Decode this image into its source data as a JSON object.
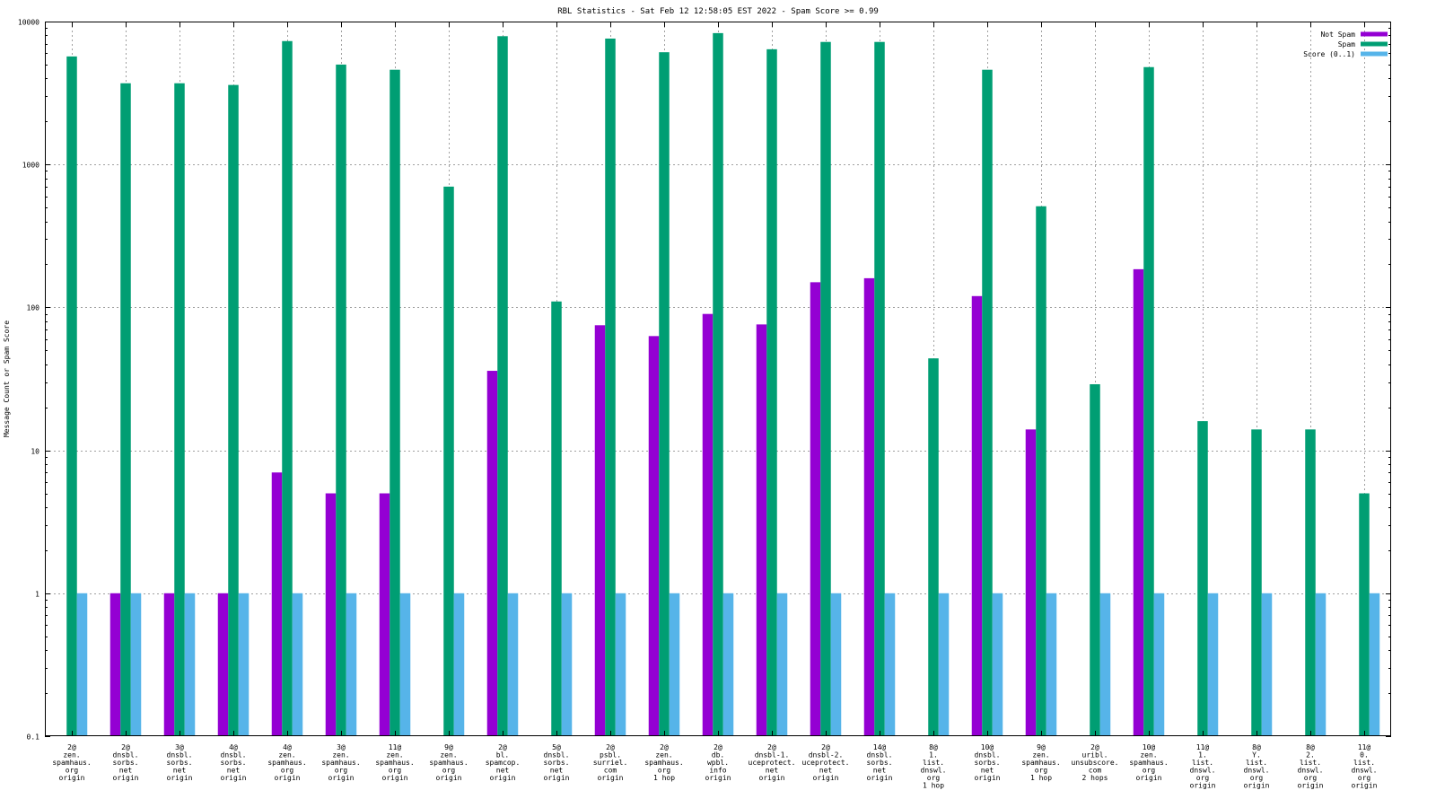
{
  "chart_data": {
    "type": "bar",
    "title": "RBL Statistics - Sat Feb 12 12:58:05 EST 2022 - Spam Score >= 0.99",
    "ylabel": "Message Count or Spam Score",
    "xlabel": "",
    "yscale": "log",
    "ylim": [
      0.1,
      10000
    ],
    "yticks": [
      "0.1",
      "1",
      "10",
      "100",
      "1000",
      "10000"
    ],
    "grid": true,
    "legend_position": "top-right",
    "categories": [
      "2@ zen. spamhaus. org origin",
      "2@ dnsbl. sorbs. net origin",
      "3@ dnsbl. sorbs. net origin",
      "4@ dnsbl. sorbs. net origin",
      "4@ zen. spamhaus. org origin",
      "3@ zen. spamhaus. org origin",
      "11@ zen. spamhaus. org origin",
      "9@ zen. spamhaus. org origin",
      "2@ bl. spamcop. net origin",
      "5@ dnsbl. sorbs. net origin",
      "2@ psbl. surriel. com origin",
      "2@ zen. spamhaus. org 1 hop",
      "2@ db. wpbl. info origin",
      "2@ dnsbl-1. uceprotect. net origin",
      "2@ dnsbl-2. uceprotect. net origin",
      "14@ dnsbl. sorbs. net origin",
      "8@ 1. list. dnswl. org 1 hop",
      "10@ dnsbl. sorbs. net origin",
      "9@ zen. spamhaus. org 1 hop",
      "2@ uribl. unsubscore. com 2 hops",
      "10@ zen. spamhaus. org origin",
      "11@ 1. list. dnswl. org origin",
      "8@ Y. list. dnswl. org origin",
      "8@ 2. list. dnswl. org origin",
      "11@ 0. list. dnswl. org origin"
    ],
    "category_lines": [
      [
        "2@",
        "zen.",
        "spamhaus.",
        "org",
        "origin"
      ],
      [
        "2@",
        "dnsbl.",
        "sorbs.",
        "net",
        "origin"
      ],
      [
        "3@",
        "dnsbl.",
        "sorbs.",
        "net",
        "origin"
      ],
      [
        "4@",
        "dnsbl.",
        "sorbs.",
        "net",
        "origin"
      ],
      [
        "4@",
        "zen.",
        "spamhaus.",
        "org",
        "origin"
      ],
      [
        "3@",
        "zen.",
        "spamhaus.",
        "org",
        "origin"
      ],
      [
        "11@",
        "zen.",
        "spamhaus.",
        "org",
        "origin"
      ],
      [
        "9@",
        "zen.",
        "spamhaus.",
        "org",
        "origin"
      ],
      [
        "2@",
        "bl.",
        "spamcop.",
        "net",
        "origin"
      ],
      [
        "5@",
        "dnsbl.",
        "sorbs.",
        "net",
        "origin"
      ],
      [
        "2@",
        "psbl.",
        "surriel.",
        "com",
        "origin"
      ],
      [
        "2@",
        "zen.",
        "spamhaus.",
        "org",
        "1 hop"
      ],
      [
        "2@",
        "db.",
        "wpbl.",
        "info",
        "origin"
      ],
      [
        "2@",
        "dnsbl-1.",
        "uceprotect.",
        "net",
        "origin"
      ],
      [
        "2@",
        "dnsbl-2.",
        "uceprotect.",
        "net",
        "origin"
      ],
      [
        "14@",
        "dnsbl.",
        "sorbs.",
        "net",
        "origin"
      ],
      [
        "8@",
        "1.",
        "list.",
        "dnswl.",
        "org",
        "1 hop"
      ],
      [
        "10@",
        "dnsbl.",
        "sorbs.",
        "net",
        "origin"
      ],
      [
        "9@",
        "zen.",
        "spamhaus.",
        "org",
        "1 hop"
      ],
      [
        "2@",
        "uribl.",
        "unsubscore.",
        "com",
        "2 hops"
      ],
      [
        "10@",
        "zen.",
        "spamhaus.",
        "org",
        "origin"
      ],
      [
        "11@",
        "1.",
        "list.",
        "dnswl.",
        "org",
        "origin"
      ],
      [
        "8@",
        "Y.",
        "list.",
        "dnswl.",
        "org",
        "origin"
      ],
      [
        "8@",
        "2.",
        "list.",
        "dnswl.",
        "org",
        "origin"
      ],
      [
        "11@",
        "0.",
        "list.",
        "dnswl.",
        "org",
        "origin"
      ]
    ],
    "series": [
      {
        "name": "Not Spam",
        "color": "#9400d3",
        "values": [
          null,
          1,
          1,
          1,
          7,
          5,
          5,
          null,
          36,
          null,
          75,
          63,
          90,
          76,
          150,
          160,
          null,
          120,
          14,
          null,
          185,
          null,
          null,
          null,
          null
        ]
      },
      {
        "name": "Spam",
        "color": "#009e73",
        "values": [
          5700,
          3700,
          3700,
          3600,
          7300,
          5000,
          4600,
          700,
          7900,
          110,
          7600,
          6100,
          8300,
          6400,
          7200,
          7200,
          44,
          4600,
          510,
          29,
          4800,
          16,
          14,
          14,
          5
        ]
      },
      {
        "name": "Score (0..1)",
        "color": "#56b4e9",
        "values": [
          1,
          1,
          1,
          1,
          1,
          1,
          1,
          1,
          1,
          1,
          1,
          1,
          1,
          1,
          1,
          1,
          1,
          1,
          1,
          1,
          1,
          1,
          1,
          1,
          1
        ]
      }
    ]
  }
}
